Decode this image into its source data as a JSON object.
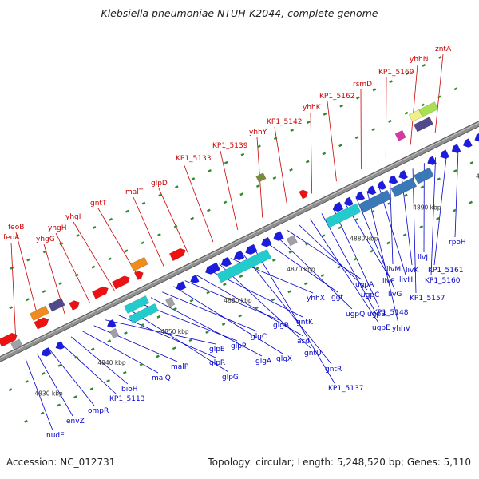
{
  "title": "Klebsiella pneumoniae NTUH-K2044, complete genome",
  "footer": {
    "accession_label": "Accession:",
    "accession": "NC_012731",
    "topology_label": "Topology:",
    "topology": "circular",
    "length_label": "Length:",
    "length": "5,248,520 bp",
    "genes_label": "Genes:",
    "genes": "5,110"
  },
  "colors": {
    "label_above": "#cc0000",
    "label_below": "#0000cc",
    "backbone": "#8f8f8f",
    "tick": "#2e8b2e",
    "blue_gene": "#1c1ce0",
    "red_gene": "#ee1111",
    "cyan_gene": "#22cccc",
    "steel_gene": "#3a78b8",
    "orange_gene": "#f08c1e",
    "purple_gene": "#504a8c"
  },
  "kbp_labels": [
    "4830 kbp",
    "4840 kbp",
    "4850 kbp",
    "4860 kbp",
    "4870 kbp",
    "4880 kbp",
    "4890 kbp",
    "4900 kbp"
  ],
  "genes_above": [
    "feoA",
    "feoB",
    "yhgG",
    "yhgH",
    "yhgI",
    "gntT",
    "malT",
    "glpD",
    "KP1_5133",
    "KP1_5139",
    "yhhY",
    "KP1_5142",
    "yhhK",
    "KP1_5162",
    "rsmD",
    "KP1_5169",
    "yhhN",
    "zntA"
  ],
  "genes_below": [
    "nudE",
    "envZ",
    "ompR",
    "KP1_5113",
    "bioH",
    "malQ",
    "malP",
    "glpE",
    "glpR",
    "glpG",
    "glpP",
    "glgA",
    "glgC",
    "glgX",
    "glgB",
    "asd",
    "gntK",
    "gntU",
    "yhhX",
    "gntR",
    "KP1_5137",
    "ggt",
    "ugpQ",
    "ugpA",
    "ugpC",
    "ugpE",
    "ugpB",
    "KP1_5148",
    "livF",
    "livG",
    "yhhV",
    "livH",
    "livM",
    "livK",
    "KP1_5157",
    "livJ",
    "KP1_5160",
    "KP1_5161",
    "rpoH"
  ]
}
